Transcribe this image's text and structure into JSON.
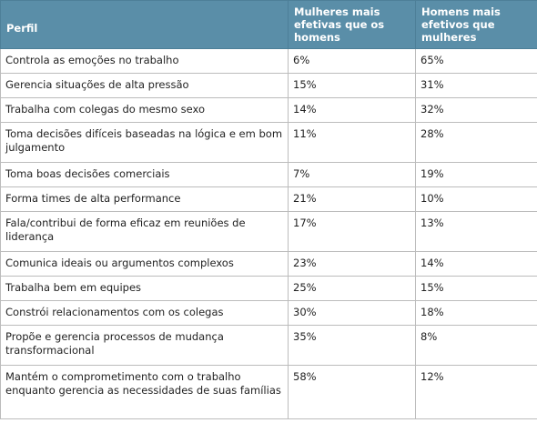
{
  "chart_data": {
    "type": "table",
    "columns": [
      "Perfil",
      "Mulheres mais efetivas que os homens",
      "Homens mais efetivos que mulheres"
    ],
    "rows": [
      {
        "perfil": "Controla as emoções no trabalho",
        "mulheres": "6%",
        "homens": "65%",
        "lines": 1
      },
      {
        "perfil": "Gerencia situações de alta pressão",
        "mulheres": "15%",
        "homens": "31%",
        "lines": 1
      },
      {
        "perfil": "Trabalha com colegas do mesmo sexo",
        "mulheres": "14%",
        "homens": "32%",
        "lines": 1
      },
      {
        "perfil": "Toma decisões difíceis baseadas na lógica e em bom julgamento",
        "mulheres": "11%",
        "homens": "28%",
        "lines": 2
      },
      {
        "perfil": "Toma boas decisões comerciais",
        "mulheres": "7%",
        "homens": "19%",
        "lines": 1
      },
      {
        "perfil": "Forma times de alta performance",
        "mulheres": "21%",
        "homens": "10%",
        "lines": 1
      },
      {
        "perfil": "Fala/contribui de forma eficaz em reuniões de liderança",
        "mulheres": "17%",
        "homens": "13%",
        "lines": 2
      },
      {
        "perfil": "Comunica ideais ou argumentos complexos",
        "mulheres": "23%",
        "homens": "14%",
        "lines": 1
      },
      {
        "perfil": "Trabalha bem em equipes",
        "mulheres": "25%",
        "homens": "15%",
        "lines": 1
      },
      {
        "perfil": "Constrói relacionamentos com os colegas",
        "mulheres": "30%",
        "homens": "18%",
        "lines": 1
      },
      {
        "perfil": "Propõe e gerencia processos de mudança transformacional",
        "mulheres": "35%",
        "homens": "8%",
        "lines": 2
      },
      {
        "perfil": "Mantém o comprometimento com o trabalho enquanto gerencia as necessidades de suas famílias",
        "mulheres": "58%",
        "homens": "12%",
        "lines": 3
      }
    ]
  },
  "colors": {
    "header_bg": "#5a8ea8",
    "header_text": "#ffffff",
    "border": "#bcbcbc",
    "text": "#222222"
  }
}
